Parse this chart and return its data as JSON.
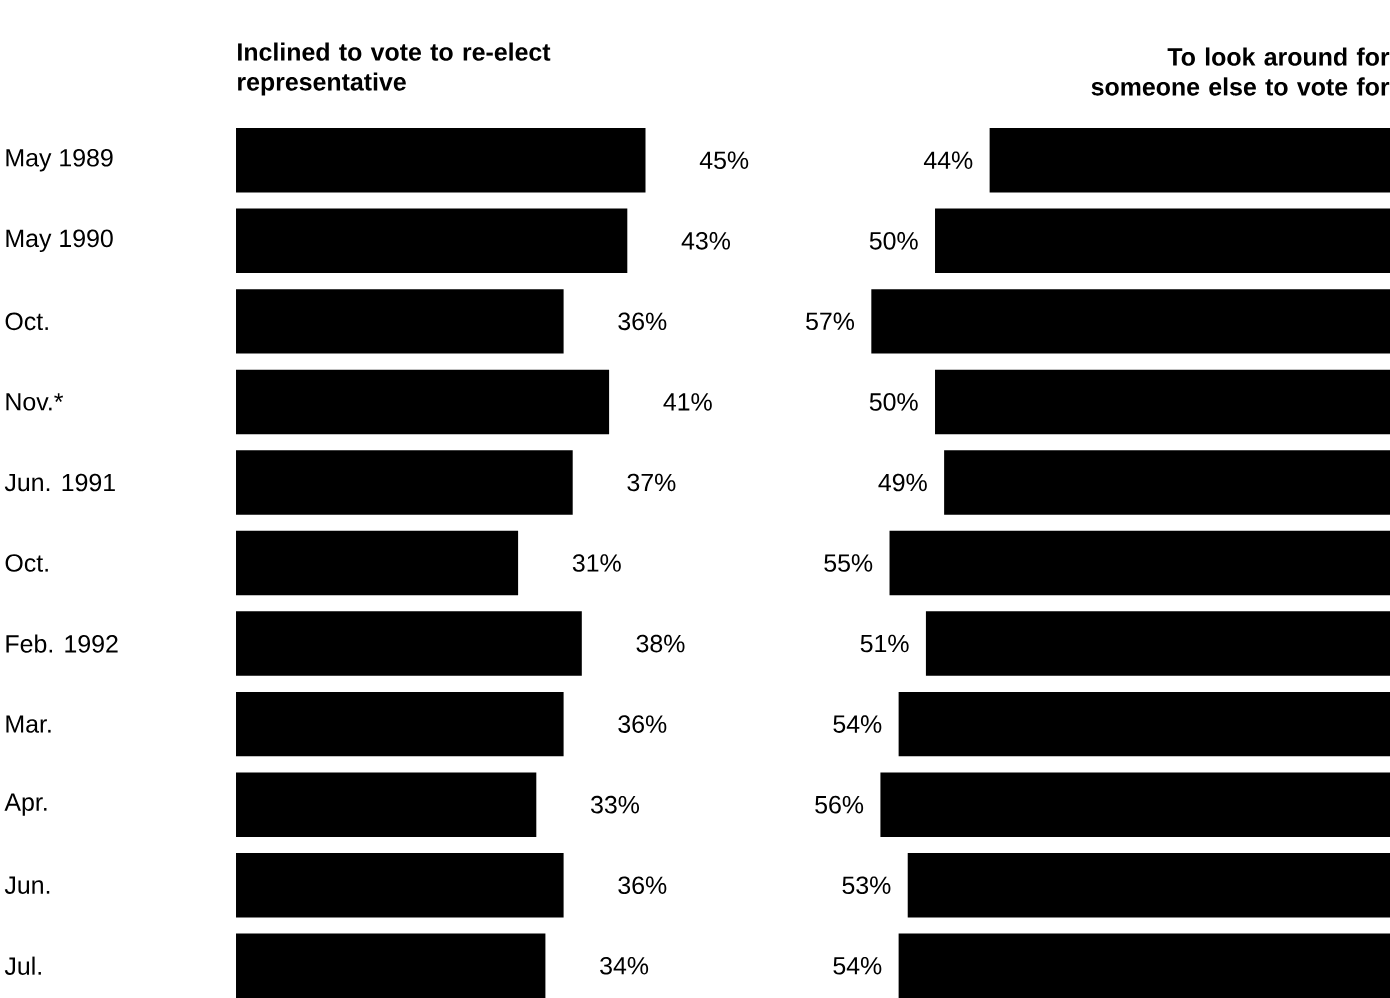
{
  "chart_data": [
    {
      "type": "bar",
      "orientation": "horizontal",
      "title": "Inclined to vote to re-elect representative",
      "categories": [
        "May 1989",
        "May 1990",
        "Oct.",
        "Nov.*",
        "Jun. 1991",
        "Oct.",
        "Feb. 1992",
        "Mar.",
        "Apr.",
        "Jun.",
        "Jul."
      ],
      "values": [
        45,
        43,
        36,
        41,
        37,
        31,
        38,
        36,
        33,
        36,
        34
      ],
      "value_labels": [
        "45%",
        "43%",
        "36%",
        "41%",
        "37%",
        "31%",
        "38%",
        "36%",
        "33%",
        "36%",
        "34%"
      ],
      "color": "#000000",
      "xlim": [
        0,
        45
      ],
      "tick_labels": "y"
    },
    {
      "type": "bar",
      "orientation": "horizontal",
      "title": "To look around for someone else to vote for",
      "categories": [
        null,
        null,
        null,
        null,
        null,
        null,
        null,
        null,
        null,
        null,
        null
      ],
      "values": [
        44,
        50,
        57,
        50,
        49,
        55,
        51,
        54,
        56,
        53,
        54
      ],
      "value_labels": [
        "44%",
        "50%",
        "57%",
        "50%",
        "49%",
        "55%",
        "51%",
        "54%",
        "56%",
        "53%",
        "54%"
      ],
      "color": "#000000",
      "xlim": [
        57,
        0
      ],
      "tick_labels": false
    }
  ]
}
